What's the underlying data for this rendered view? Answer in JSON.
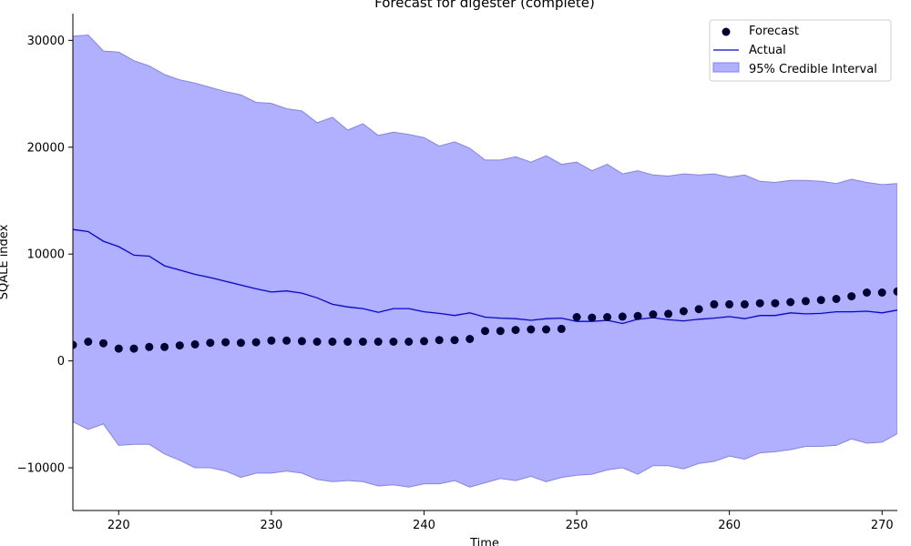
{
  "chart_data": {
    "type": "line",
    "title": "Forecast for digester (complete)",
    "xlabel": "Time",
    "ylabel": "SQALE index",
    "xlim": [
      217,
      271
    ],
    "ylim": [
      -14000,
      32500
    ],
    "xticks": [
      220,
      230,
      240,
      250,
      260,
      270
    ],
    "yticks": [
      -10000,
      0,
      10000,
      20000,
      30000
    ],
    "grid": false,
    "legend_position": "top-right",
    "legend": {
      "forecast": "Forecast",
      "actual": "Actual",
      "interval": "95% Credible Interval"
    },
    "colors": {
      "forecast": "#000033",
      "actual": "#0000ff",
      "band_fill": "#b0b0ff",
      "band_edge": "#8080ff"
    },
    "x": [
      217,
      218,
      219,
      220,
      221,
      222,
      223,
      224,
      225,
      226,
      227,
      228,
      229,
      230,
      231,
      232,
      233,
      234,
      235,
      236,
      237,
      238,
      239,
      240,
      241,
      242,
      243,
      244,
      245,
      246,
      247,
      248,
      249,
      250,
      251,
      252,
      253,
      254,
      255,
      256,
      257,
      258,
      259,
      260,
      261,
      262,
      263,
      264,
      265,
      266,
      267,
      268,
      269,
      270,
      271
    ],
    "series": [
      {
        "name": "Forecast",
        "kind": "scatter",
        "values": [
          1500,
          1800,
          1650,
          1150,
          1150,
          1300,
          1300,
          1450,
          1550,
          1700,
          1750,
          1700,
          1750,
          1900,
          1900,
          1850,
          1800,
          1800,
          1800,
          1800,
          1800,
          1800,
          1800,
          1850,
          1950,
          1950,
          2050,
          2800,
          2800,
          2900,
          2950,
          2950,
          3000,
          4100,
          4050,
          4100,
          4150,
          4200,
          4350,
          4400,
          4650,
          4850,
          5300,
          5300,
          5300,
          5400,
          5400,
          5500,
          5600,
          5700,
          5800,
          6050,
          6400,
          6400,
          6500
        ]
      },
      {
        "name": "Actual",
        "kind": "line",
        "values": [
          12300,
          12100,
          11200,
          10700,
          9900,
          9800,
          8900,
          8500,
          8100,
          7800,
          7450,
          7100,
          6750,
          6450,
          6550,
          6350,
          5900,
          5300,
          5050,
          4900,
          4550,
          4900,
          4900,
          4600,
          4450,
          4250,
          4500,
          4100,
          4000,
          3950,
          3800,
          3950,
          4000,
          3700,
          3700,
          3800,
          3500,
          3900,
          4050,
          3850,
          3750,
          3900,
          4000,
          4150,
          3950,
          4250,
          4250,
          4500,
          4400,
          4450,
          4600,
          4600,
          4650,
          4500,
          4750
        ]
      }
    ],
    "interval": {
      "name": "95% Credible Interval",
      "upper": [
        30400,
        30500,
        29000,
        28900,
        28100,
        27600,
        26800,
        26300,
        26000,
        25600,
        25200,
        24900,
        24200,
        24100,
        23600,
        23400,
        22300,
        22800,
        21600,
        22200,
        21100,
        21400,
        21200,
        20900,
        20100,
        20500,
        19900,
        18800,
        18800,
        19100,
        18600,
        19200,
        18400,
        18600,
        17800,
        18400,
        17500,
        17800,
        17400,
        17300,
        17500,
        17400,
        17500,
        17200,
        17400,
        16800,
        16700,
        16900,
        16900,
        16800,
        16600,
        17000,
        16700,
        16500,
        16600
      ],
      "lower": [
        -5700,
        -6400,
        -5900,
        -7900,
        -7800,
        -7800,
        -8700,
        -9300,
        -10000,
        -10000,
        -10300,
        -10900,
        -10500,
        -10500,
        -10300,
        -10500,
        -11100,
        -11300,
        -11200,
        -11300,
        -11700,
        -11600,
        -11800,
        -11500,
        -11500,
        -11200,
        -11800,
        -11400,
        -11000,
        -11200,
        -10800,
        -11300,
        -10900,
        -10700,
        -10600,
        -10200,
        -10000,
        -10600,
        -9800,
        -9800,
        -10100,
        -9600,
        -9400,
        -8900,
        -9200,
        -8600,
        -8500,
        -8300,
        -8000,
        -8000,
        -7900,
        -7300,
        -7700,
        -7600,
        -6800
      ]
    }
  }
}
